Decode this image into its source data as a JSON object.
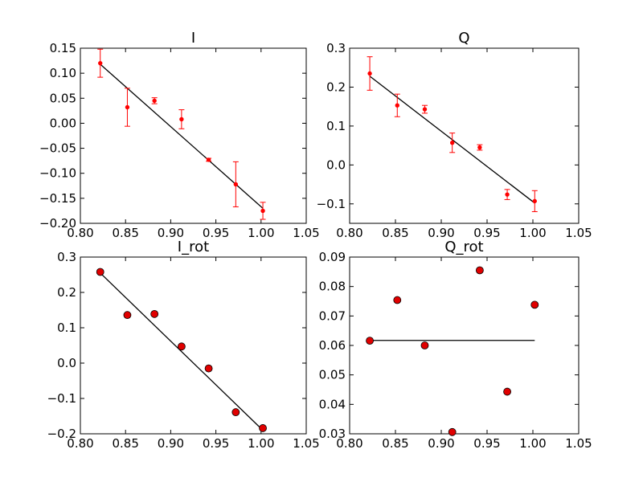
{
  "figure": {
    "background": "#ffffff",
    "marker_color": "#ff0000",
    "line_color": "#000000"
  },
  "chart_data": [
    {
      "type": "scatter",
      "title": "I",
      "xlabel": "",
      "ylabel": "",
      "xlim": [
        0.8,
        1.05
      ],
      "ylim": [
        -0.2,
        0.15
      ],
      "xticks": [
        "0.80",
        "0.85",
        "0.90",
        "0.95",
        "1.00",
        "1.05"
      ],
      "yticks": [
        "−0.20",
        "−0.15",
        "−0.10",
        "−0.05",
        "0.00",
        "0.05",
        "0.10",
        "0.15"
      ],
      "grid": false,
      "marker": "small-dot-errorbar",
      "points": [
        {
          "x": 0.822,
          "y": 0.12,
          "err": 0.028
        },
        {
          "x": 0.852,
          "y": 0.032,
          "err": 0.038
        },
        {
          "x": 0.882,
          "y": 0.045,
          "err": 0.006
        },
        {
          "x": 0.912,
          "y": 0.008,
          "err": 0.019
        },
        {
          "x": 0.942,
          "y": -0.073,
          "err": 0.003
        },
        {
          "x": 0.972,
          "y": -0.122,
          "err": 0.045
        },
        {
          "x": 1.002,
          "y": -0.175,
          "err": 0.017
        }
      ],
      "fit": {
        "x": [
          0.822,
          1.002
        ],
        "y": [
          0.118,
          -0.17
        ]
      }
    },
    {
      "type": "scatter",
      "title": "Q",
      "xlabel": "",
      "ylabel": "",
      "xlim": [
        0.8,
        1.05
      ],
      "ylim": [
        -0.15,
        0.3
      ],
      "xticks": [
        "0.80",
        "0.85",
        "0.90",
        "0.95",
        "1.00",
        "1.05"
      ],
      "yticks": [
        "−0.1",
        "0.0",
        "0.1",
        "0.2",
        "0.3"
      ],
      "grid": false,
      "marker": "small-dot-errorbar",
      "points": [
        {
          "x": 0.822,
          "y": 0.235,
          "err": 0.043
        },
        {
          "x": 0.852,
          "y": 0.153,
          "err": 0.029
        },
        {
          "x": 0.882,
          "y": 0.143,
          "err": 0.01
        },
        {
          "x": 0.912,
          "y": 0.057,
          "err": 0.025
        },
        {
          "x": 0.942,
          "y": 0.045,
          "err": 0.007
        },
        {
          "x": 0.972,
          "y": -0.076,
          "err": 0.013
        },
        {
          "x": 1.002,
          "y": -0.093,
          "err": 0.027
        }
      ],
      "fit": {
        "x": [
          0.822,
          1.002
        ],
        "y": [
          0.228,
          -0.098
        ]
      }
    },
    {
      "type": "scatter",
      "title": "I_rot",
      "xlabel": "",
      "ylabel": "",
      "xlim": [
        0.8,
        1.05
      ],
      "ylim": [
        -0.2,
        0.3
      ],
      "xticks": [
        "0.80",
        "0.85",
        "0.90",
        "0.95",
        "1.00",
        "1.05"
      ],
      "yticks": [
        "−0.2",
        "−0.1",
        "0.0",
        "0.1",
        "0.2",
        "0.3"
      ],
      "grid": false,
      "marker": "large-circle",
      "points": [
        {
          "x": 0.822,
          "y": 0.258
        },
        {
          "x": 0.852,
          "y": 0.136
        },
        {
          "x": 0.882,
          "y": 0.139
        },
        {
          "x": 0.912,
          "y": 0.047
        },
        {
          "x": 0.942,
          "y": -0.015
        },
        {
          "x": 0.972,
          "y": -0.139
        },
        {
          "x": 1.002,
          "y": -0.184
        }
      ],
      "fit": {
        "x": [
          0.822,
          1.002
        ],
        "y": [
          0.255,
          -0.19
        ]
      }
    },
    {
      "type": "scatter",
      "title": "Q_rot",
      "xlabel": "",
      "ylabel": "",
      "xlim": [
        0.8,
        1.05
      ],
      "ylim": [
        0.03,
        0.09
      ],
      "xticks": [
        "0.80",
        "0.85",
        "0.90",
        "0.95",
        "1.00",
        "1.05"
      ],
      "yticks": [
        "0.03",
        "0.04",
        "0.05",
        "0.06",
        "0.07",
        "0.08",
        "0.09"
      ],
      "grid": false,
      "marker": "large-circle",
      "points": [
        {
          "x": 0.822,
          "y": 0.0616
        },
        {
          "x": 0.852,
          "y": 0.0754
        },
        {
          "x": 0.882,
          "y": 0.06
        },
        {
          "x": 0.912,
          "y": 0.0306
        },
        {
          "x": 0.942,
          "y": 0.0855
        },
        {
          "x": 0.972,
          "y": 0.0443
        },
        {
          "x": 1.002,
          "y": 0.0738
        }
      ],
      "fit": {
        "x": [
          0.822,
          1.002
        ],
        "y": [
          0.0617,
          0.0617
        ]
      }
    }
  ]
}
